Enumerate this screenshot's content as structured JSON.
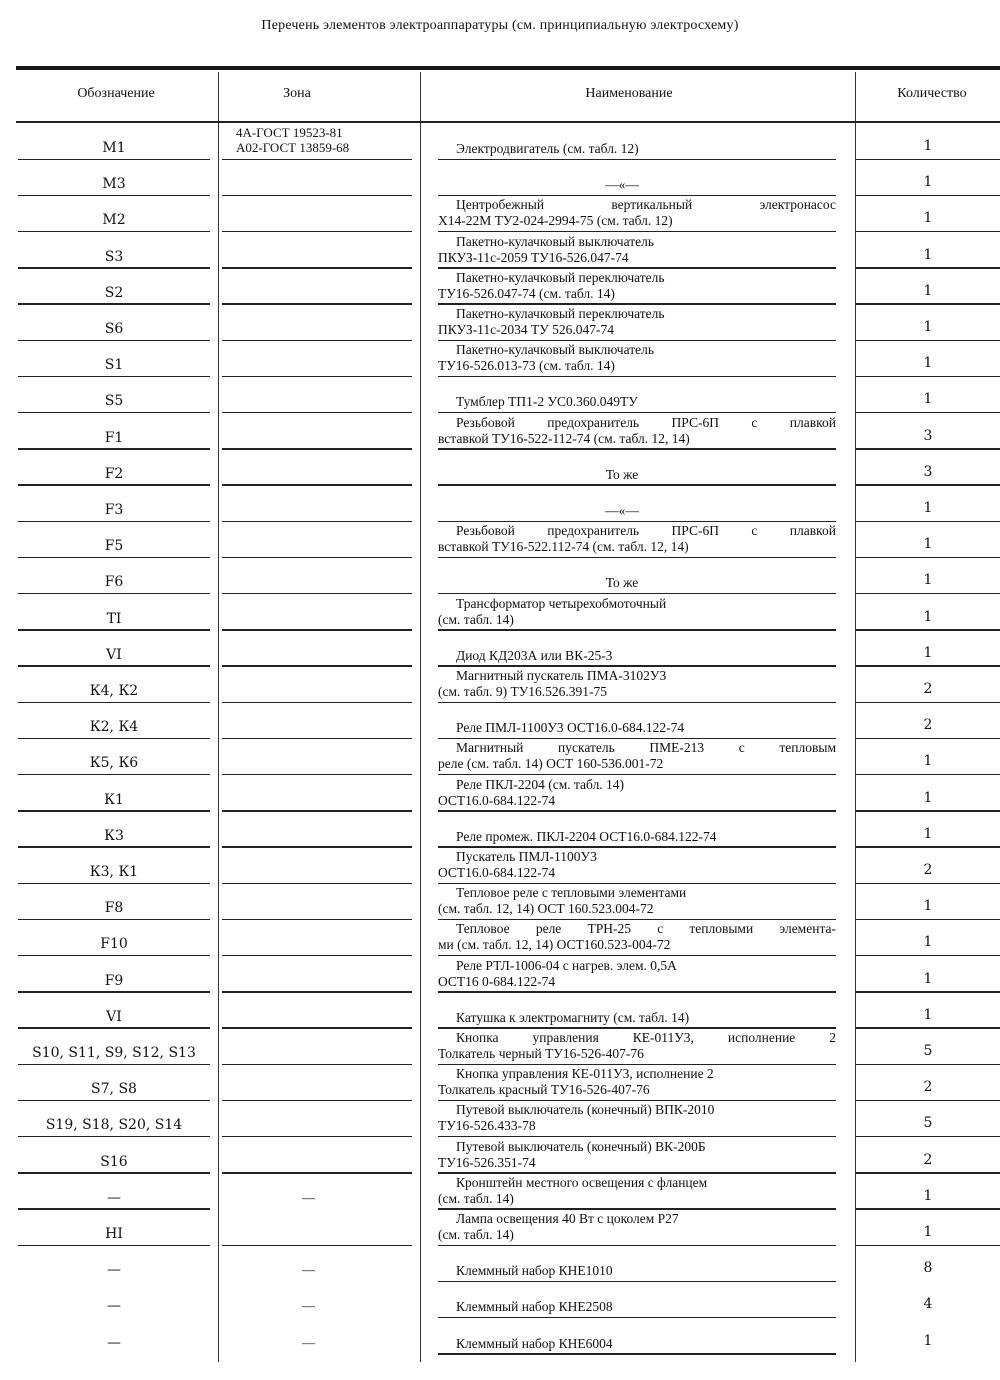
{
  "title": "Перечень элементов электроаппаратуры (см. принципиальную электросхему)",
  "headers": {
    "designation": "Обозначение",
    "zone": "Зона",
    "name": "Наименование",
    "quantity": "Количество"
  },
  "rows": [
    {
      "designation": "M1",
      "zone": [
        "4А-ГОСТ 19523-81",
        "А02-ГОСТ 13859-68"
      ],
      "name": [
        "Электродвигатель (см. табл. 12)"
      ],
      "quantity": "1"
    },
    {
      "designation": "M3",
      "zone": [],
      "name": [
        "—«—"
      ],
      "quantity": "1",
      "center": true
    },
    {
      "designation": "M2",
      "zone": [],
      "name": [
        "Центробежный вертикальный электронасос",
        "Х14-22М ТУ2-024-2994-75 (см. табл. 12)"
      ],
      "quantity": "1",
      "justify": true
    },
    {
      "designation": "S3",
      "zone": [],
      "name": [
        "Пакетно-кулачковый выключатель",
        "ПКУЗ-11с-2059 ТУ16-526.047-74"
      ],
      "quantity": "1"
    },
    {
      "designation": "S2",
      "zone": [],
      "name": [
        "Пакетно-кулачковый переключатель",
        "ТУ16-526.047-74 (см. табл. 14)"
      ],
      "quantity": "1"
    },
    {
      "designation": "S6",
      "zone": [],
      "name": [
        "Пакетно-кулачковый переключатель",
        "ПКУЗ-11с-2034 ТУ 526.047-74"
      ],
      "quantity": "1"
    },
    {
      "designation": "S1",
      "zone": [],
      "name": [
        "Пакетно-кулачковый выключатель",
        "ТУ16-526.013-73 (см. табл. 14)"
      ],
      "quantity": "1"
    },
    {
      "designation": "S5",
      "zone": [],
      "name": [
        "Тумблер ТП1-2 УС0.360.049ТУ"
      ],
      "quantity": "1"
    },
    {
      "designation": "F1",
      "zone": [],
      "name": [
        "Резьбовой предохранитель ПРС-6П с плавкой",
        "вставкой ТУ16-522-112-74 (см. табл. 12, 14)"
      ],
      "quantity": "3",
      "justify": true
    },
    {
      "designation": "F2",
      "zone": [],
      "name": [
        "То же"
      ],
      "quantity": "3",
      "center": true
    },
    {
      "designation": "F3",
      "zone": [],
      "name": [
        "—«—"
      ],
      "quantity": "1",
      "center": true
    },
    {
      "designation": "F5",
      "zone": [],
      "name": [
        "Резьбовой предохранитель ПРС-6П с плавкой",
        "вставкой ТУ16-522.112-74 (см. табл. 12, 14)"
      ],
      "quantity": "1",
      "justify": true
    },
    {
      "designation": "F6",
      "zone": [],
      "name": [
        "То же"
      ],
      "quantity": "1",
      "center": true
    },
    {
      "designation": "TI",
      "zone": [],
      "name": [
        "Трансформатор четырехобмоточный",
        "(см. табл. 14)"
      ],
      "quantity": "1"
    },
    {
      "designation": "VI",
      "zone": [],
      "name": [
        "Диод КД203А или ВК-25-3"
      ],
      "quantity": "1"
    },
    {
      "designation": "К4, К2",
      "zone": [],
      "name": [
        "Магнитный пускатель ПМА-3102У3",
        "(см. табл. 9) ТУ16.526.391-75"
      ],
      "quantity": "2"
    },
    {
      "designation": "К2, К4",
      "zone": [],
      "name": [
        "Реле ПМЛ-1100У3 ОСТ16.0-684.122-74"
      ],
      "quantity": "2"
    },
    {
      "designation": "К5, К6",
      "zone": [],
      "name": [
        "Магнитный пускатель ПМЕ-213 с тепловым",
        "реле (см. табл. 14) ОСТ 160-536.001-72"
      ],
      "quantity": "1",
      "justify": true
    },
    {
      "designation": "К1",
      "zone": [],
      "name": [
        "Реле ПКЛ-2204 (см. табл. 14)",
        "ОСТ16.0-684.122-74"
      ],
      "quantity": "1"
    },
    {
      "designation": "К3",
      "zone": [],
      "name": [
        "Реле промеж. ПКЛ-2204 ОСТ16.0-684.122-74"
      ],
      "quantity": "1"
    },
    {
      "designation": "К3, К1",
      "zone": [],
      "name": [
        "Пускатель ПМЛ-1100У3",
        "ОСТ16.0-684.122-74"
      ],
      "quantity": "2"
    },
    {
      "designation": "F8",
      "zone": [],
      "name": [
        "Тепловое реле с тепловыми элементами",
        "(см. табл. 12, 14) ОСТ 160.523.004-72"
      ],
      "quantity": "1"
    },
    {
      "designation": "F10",
      "zone": [],
      "name": [
        "Тепловое реле ТРН-25 с тепловыми элемента-",
        "ми (см. табл. 12, 14) ОСТ160.523-004-72"
      ],
      "quantity": "1",
      "justify": true
    },
    {
      "designation": "F9",
      "zone": [],
      "name": [
        "Реле РТЛ-1006-04 с нагрев. элем. 0,5А",
        "ОСТ16 0-684.122-74"
      ],
      "quantity": "1"
    },
    {
      "designation": "VI",
      "zone": [],
      "name": [
        "Катушка к электромагниту (см. табл. 14)"
      ],
      "quantity": "1"
    },
    {
      "designation": "S10, S11, S9, S12, S13",
      "zone": [],
      "name": [
        "Кнопка управления КЕ-011У3, исполнение 2",
        "Толкатель черный ТУ16-526-407-76"
      ],
      "quantity": "5",
      "justify": true
    },
    {
      "designation": "S7, S8",
      "zone": [],
      "name": [
        "Кнопка управления КЕ-011У3, исполнение 2",
        "Толкатель красный ТУ16-526-407-76"
      ],
      "quantity": "2"
    },
    {
      "designation": "S19, S18, S20, S14",
      "zone": [],
      "name": [
        "Путевой выключатель (конечный) ВПК-2010",
        "ТУ16-526.433-78"
      ],
      "quantity": "5"
    },
    {
      "designation": "S16",
      "zone": [],
      "name": [
        "Путевой выключатель (конечный) ВК-200Б",
        "ТУ16-526.351-74"
      ],
      "quantity": "2"
    },
    {
      "designation": "—",
      "zone": [
        "—"
      ],
      "name": [
        "Кронштейн местного освещения с фланцем",
        "(см. табл. 14)"
      ],
      "quantity": "1"
    },
    {
      "designation": "HI",
      "zone": [],
      "name": [
        "Лампа освещения 40 Вт с цоколем Р27",
        "(см. табл. 14)"
      ],
      "quantity": "1"
    },
    {
      "designation": "—",
      "zone": [
        "—"
      ],
      "name": [
        "Клеммный набор КНЕ1010"
      ],
      "quantity": "8",
      "nolines": true
    },
    {
      "designation": "—",
      "zone": [
        "—"
      ],
      "name": [
        "Клеммный набор КНЕ2508"
      ],
      "quantity": "4",
      "nolines": true
    },
    {
      "designation": "—",
      "zone": [
        "—"
      ],
      "name": [
        "Клеммный набор КНЕ6004"
      ],
      "quantity": "1",
      "nolines": true
    }
  ]
}
